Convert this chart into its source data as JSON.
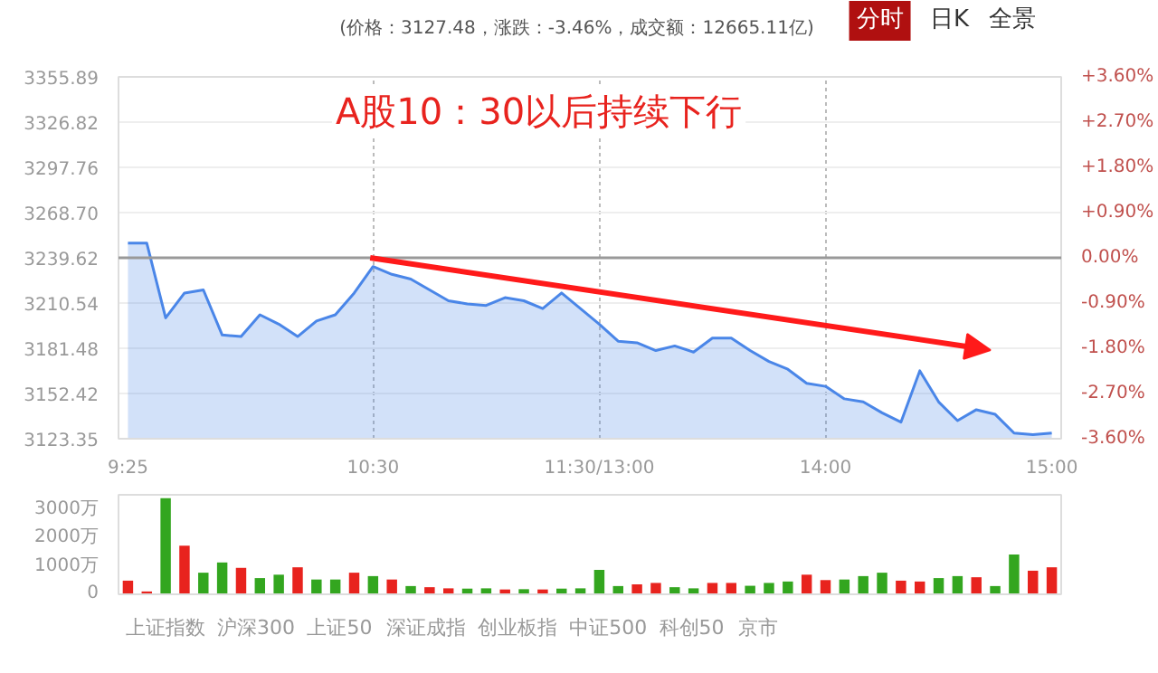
{
  "chart_data": [
    {
      "type": "area",
      "title": "A股10：30以后持续下行",
      "subtitle": "(价格：3127.48，涨跌：-3.46%，成交额：12665.11亿)",
      "annotations": [
        "分时",
        "日K",
        "全景"
      ],
      "categories": [
        "9:25",
        null,
        null,
        null,
        null,
        null,
        null,
        null,
        null,
        null,
        null,
        null,
        null,
        "10:30",
        null,
        null,
        null,
        null,
        null,
        null,
        null,
        null,
        null,
        null,
        null,
        "11:30/13:00",
        null,
        null,
        null,
        null,
        null,
        null,
        null,
        null,
        null,
        null,
        null,
        "14:00",
        null,
        null,
        null,
        null,
        null,
        null,
        null,
        null,
        null,
        null,
        null,
        "15:00"
      ],
      "series": [
        {
          "color": "#4a86e8",
          "values": [
            3249,
            3249,
            3201,
            3217,
            3219,
            3190,
            3189,
            3203,
            3197,
            3189,
            3199,
            3203,
            3217,
            3234,
            3229,
            3226,
            3219,
            3212,
            3210,
            3209,
            3214,
            3212,
            3207,
            3217,
            3207,
            3197,
            3186,
            3185,
            3180,
            3183,
            3179,
            3188,
            3188,
            3180,
            3173,
            3168,
            3159,
            3157,
            3149,
            3147,
            3140,
            3134,
            3167,
            3147,
            3135,
            3142,
            3139,
            3127,
            3126,
            3127
          ]
        }
      ],
      "ylim": [
        3123.35,
        3355.89
      ],
      "yticks": [
        3123.35,
        3152.42,
        3181.48,
        3210.54,
        3239.62,
        {
          "value": 3268.7,
          "label": "3268.70"
        },
        3297.76,
        3326.82,
        3355.89
      ],
      "y2lim": [
        -3.6,
        3.6
      ],
      "y2ticks": [
        {
          "value": -3.6,
          "label": "-3.60%"
        },
        {
          "value": -2.7,
          "label": "-2.70%"
        },
        {
          "value": -1.8,
          "label": "-1.80%"
        },
        {
          "value": -0.9,
          "label": "-0.90%"
        },
        {
          "value": 0,
          "label": "0.00%"
        },
        {
          "value": 0.9,
          "label": "+0.90%"
        },
        {
          "value": 1.8,
          "label": "+1.80%"
        },
        {
          "value": 2.7,
          "label": "+2.70%"
        },
        {
          "value": 3.6,
          "label": "+3.60%"
        }
      ],
      "ref_lines": [
        {
          "axis": "y",
          "value": 3239.62,
          "color": "#999999"
        }
      ],
      "grid": true
    },
    {
      "type": "bar",
      "annotations": [
        "上证指数",
        "沪深300",
        "上证50",
        "深证成指",
        "创业板指",
        "中证500",
        "科创50",
        "京市"
      ],
      "categories": [
        null,
        null,
        null,
        null,
        null,
        null,
        null,
        null,
        null,
        null,
        null,
        null,
        null,
        null,
        null,
        null,
        null,
        null,
        null,
        null,
        null,
        null,
        null,
        null,
        null,
        null,
        null,
        null,
        null,
        null,
        null,
        null,
        null,
        null,
        null,
        null,
        null,
        null,
        null,
        null,
        null,
        null,
        null,
        null,
        null,
        null,
        null,
        null,
        null,
        null
      ],
      "series": [
        {
          "values": [
            480,
            100,
            3380,
            1710,
            760,
            1120,
            930,
            570,
            690,
            950,
            520,
            520,
            760,
            640,
            520,
            290,
            250,
            210,
            200,
            210,
            170,
            180,
            170,
            200,
            210,
            860,
            290,
            350,
            400,
            250,
            210,
            400,
            400,
            300,
            400,
            450,
            690,
            500,
            520,
            640,
            760,
            480,
            450,
            570,
            640,
            600,
            290,
            1400,
            830,
            950
          ],
          "colors": [
            "#e8231e",
            "#e8231e",
            "#33a61f",
            "#e8231e",
            "#33a61f",
            "#33a61f",
            "#e8231e",
            "#33a61f",
            "#33a61f",
            "#e8231e",
            "#33a61f",
            "#33a61f",
            "#e8231e",
            "#33a61f",
            "#e8231e",
            "#33a61f",
            "#e8231e",
            "#e8231e",
            "#33a61f",
            "#33a61f",
            "#e8231e",
            "#33a61f",
            "#e8231e",
            "#33a61f",
            "#33a61f",
            "#33a61f",
            "#33a61f",
            "#e8231e",
            "#e8231e",
            "#33a61f",
            "#33a61f",
            "#e8231e",
            "#e8231e",
            "#33a61f",
            "#33a61f",
            "#33a61f",
            "#e8231e",
            "#e8231e",
            "#33a61f",
            "#33a61f",
            "#33a61f",
            "#e8231e",
            "#e8231e",
            "#33a61f",
            "#33a61f",
            "#e8231e",
            "#33a61f",
            "#33a61f",
            "#e8231e",
            "#e8231e"
          ]
        }
      ],
      "ylim": [
        0,
        3500
      ],
      "yticks": [
        {
          "value": 0,
          "label": "0"
        },
        {
          "value": 1000,
          "label": "1000万"
        },
        {
          "value": 2000,
          "label": "2000万"
        },
        {
          "value": 3000,
          "label": "3000万"
        }
      ],
      "tick_labels": "y"
    }
  ]
}
